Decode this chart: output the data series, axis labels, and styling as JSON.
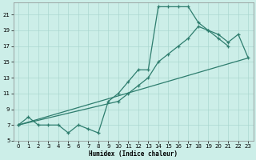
{
  "bg_color": "#cceee8",
  "line_color": "#2e7d6e",
  "grid_color": "#aad8d0",
  "xlabel": "Humidex (Indice chaleur)",
  "xlim": [
    -0.5,
    23.5
  ],
  "ylim": [
    5,
    22.5
  ],
  "xticks": [
    0,
    1,
    2,
    3,
    4,
    5,
    6,
    7,
    8,
    9,
    10,
    11,
    12,
    13,
    14,
    15,
    16,
    17,
    18,
    19,
    20,
    21,
    22,
    23
  ],
  "yticks": [
    5,
    7,
    9,
    11,
    13,
    15,
    17,
    19,
    21
  ],
  "line1_x": [
    0,
    1,
    2,
    3,
    4,
    5,
    6,
    7,
    8,
    9,
    10,
    11,
    12,
    13,
    14,
    15,
    16,
    17,
    18,
    19,
    20,
    21
  ],
  "line1_y": [
    7,
    8,
    7,
    7,
    7,
    6,
    7,
    6.5,
    6,
    10,
    11,
    12.5,
    14,
    14,
    22,
    22,
    22,
    22,
    20,
    19,
    18,
    17
  ],
  "line2_x": [
    0,
    23
  ],
  "line2_y": [
    7,
    15.5
  ],
  "line3_x": [
    0,
    10,
    11,
    12,
    13,
    14,
    15,
    16,
    17,
    18,
    19,
    20,
    21,
    22,
    23
  ],
  "line3_y": [
    7,
    10,
    11,
    12,
    13,
    15,
    16,
    17,
    18,
    19.5,
    19,
    18.5,
    17.5,
    18.5,
    15.5
  ]
}
